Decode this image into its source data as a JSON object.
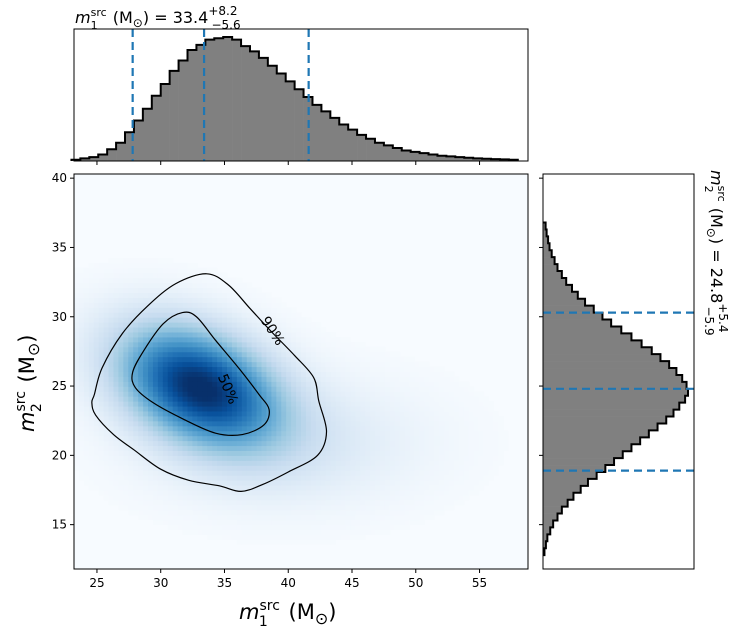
{
  "chart_data": {
    "type": "corner-plot",
    "colors": {
      "hist_fill": "#808080",
      "hist_edge": "#000000",
      "quantile_line": "#1f77b4",
      "density_cmap": "Blues"
    },
    "marginal_top": {
      "type": "histogram",
      "title": {
        "base": "m",
        "sub": "1",
        "sup": "src",
        "unit": " (M",
        "unit_sub": "⊙",
        "close": ") = ",
        "median": "33.4",
        "plus": "+8.2",
        "minus": "−5.6"
      },
      "xlim": [
        23.2,
        58.8
      ],
      "bin_edges": [
        23.0,
        58.0
      ],
      "bin_width": 0.7,
      "counts": [
        0.01,
        0.02,
        0.03,
        0.05,
        0.09,
        0.14,
        0.22,
        0.31,
        0.4,
        0.5,
        0.59,
        0.69,
        0.77,
        0.85,
        0.89,
        0.93,
        0.94,
        0.95,
        0.93,
        0.88,
        0.84,
        0.79,
        0.73,
        0.67,
        0.61,
        0.55,
        0.49,
        0.43,
        0.38,
        0.33,
        0.28,
        0.24,
        0.2,
        0.17,
        0.14,
        0.12,
        0.1,
        0.08,
        0.07,
        0.06,
        0.05,
        0.04,
        0.035,
        0.03,
        0.025,
        0.02,
        0.017,
        0.014,
        0.012,
        0.01
      ],
      "quantiles": [
        27.8,
        33.4,
        41.6
      ]
    },
    "joint": {
      "type": "heatmap",
      "xlabel": {
        "base": "m",
        "sub": "1",
        "sup": "src",
        "unit": " (M",
        "unit_sub": "⊙",
        "close": ")"
      },
      "ylabel": {
        "base": "m",
        "sub": "2",
        "sup": "src",
        "unit": " (M",
        "unit_sub": "⊙",
        "close": ")"
      },
      "xlim": [
        23.2,
        58.8
      ],
      "ylim": [
        11.8,
        40.3
      ],
      "xticks": [
        25,
        30,
        35,
        40,
        45,
        50,
        55
      ],
      "yticks": [
        15,
        20,
        25,
        30,
        35,
        40
      ],
      "density_peak": [
        33.0,
        25.0
      ],
      "contours": [
        {
          "label": "50%",
          "label_at": [
            35.3,
            24.8
          ],
          "label_angle": 67,
          "points": [
            [
              27.8,
              26.0
            ],
            [
              28.7,
              27.6
            ],
            [
              30.2,
              29.5
            ],
            [
              31.7,
              30.3
            ],
            [
              32.8,
              30.0
            ],
            [
              34.3,
              28.3
            ],
            [
              36.2,
              26.2
            ],
            [
              37.7,
              24.4
            ],
            [
              38.5,
              23.3
            ],
            [
              38.1,
              22.2
            ],
            [
              36.4,
              21.5
            ],
            [
              34.3,
              21.6
            ],
            [
              31.8,
              22.6
            ],
            [
              29.4,
              23.8
            ],
            [
              28.0,
              24.9
            ]
          ]
        },
        {
          "label": "90%",
          "label_at": [
            38.8,
            29.0
          ],
          "label_angle": 57,
          "points": [
            [
              24.8,
              24.4
            ],
            [
              25.4,
              26.3
            ],
            [
              27.0,
              28.8
            ],
            [
              29.0,
              30.8
            ],
            [
              31.2,
              32.4
            ],
            [
              33.6,
              33.1
            ],
            [
              35.3,
              32.3
            ],
            [
              37.0,
              30.6
            ],
            [
              38.6,
              29.0
            ],
            [
              40.5,
              27.2
            ],
            [
              42.0,
              25.6
            ],
            [
              42.4,
              23.9
            ],
            [
              43.0,
              21.7
            ],
            [
              42.3,
              20.0
            ],
            [
              40.0,
              18.8
            ],
            [
              38.0,
              17.9
            ],
            [
              36.3,
              17.4
            ],
            [
              34.6,
              17.8
            ],
            [
              32.2,
              18.2
            ],
            [
              30.0,
              19.0
            ],
            [
              27.9,
              20.4
            ],
            [
              26.3,
              21.5
            ],
            [
              24.9,
              22.9
            ],
            [
              24.6,
              23.8
            ]
          ]
        }
      ]
    },
    "marginal_right": {
      "type": "histogram",
      "orientation": "horizontal",
      "title": {
        "base": "m",
        "sub": "2",
        "sup": "src",
        "unit": " (M",
        "unit_sub": "⊙",
        "close": ") = ",
        "median": "24.8",
        "plus": "+5.4",
        "minus": "−5.9"
      },
      "ylim": [
        11.8,
        40.3
      ],
      "bin_edges": [
        12.8,
        36.5
      ],
      "bin_width": 0.5,
      "counts": [
        0.01,
        0.02,
        0.03,
        0.05,
        0.07,
        0.1,
        0.13,
        0.17,
        0.21,
        0.26,
        0.31,
        0.37,
        0.43,
        0.49,
        0.55,
        0.61,
        0.67,
        0.73,
        0.79,
        0.85,
        0.9,
        0.94,
        0.98,
        1.0,
        0.99,
        0.96,
        0.92,
        0.87,
        0.81,
        0.75,
        0.68,
        0.61,
        0.54,
        0.47,
        0.41,
        0.35,
        0.29,
        0.24,
        0.2,
        0.16,
        0.13,
        0.1,
        0.08,
        0.06,
        0.045,
        0.035,
        0.025,
        0.018
      ],
      "quantiles": [
        18.9,
        24.8,
        30.3
      ]
    }
  }
}
